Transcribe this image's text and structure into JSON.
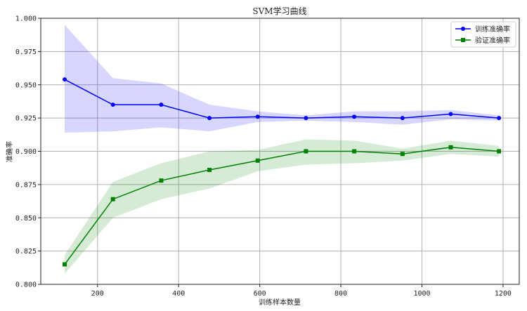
{
  "chart_data": {
    "type": "line",
    "title": "SVM学习曲线",
    "xlabel": "训练样本数量",
    "ylabel": "准确率",
    "xlim": [
      60,
      1240
    ],
    "ylim": [
      0.8,
      1.0
    ],
    "xticks": [
      200,
      400,
      600,
      800,
      1000,
      1200
    ],
    "yticks": [
      0.8,
      0.825,
      0.85,
      0.875,
      0.9,
      0.925,
      0.95,
      0.975,
      1.0
    ],
    "ytick_labels": [
      "0.800",
      "0.825",
      "0.850",
      "0.875",
      "0.900",
      "0.925",
      "0.950",
      "0.975",
      "1.000"
    ],
    "grid": true,
    "legend_position": "top-right",
    "x": [
      119,
      238,
      357,
      476,
      595,
      714,
      833,
      952,
      1071,
      1190
    ],
    "series": [
      {
        "name": "训练准确率",
        "color": "#0000ff",
        "marker": "circle",
        "values": [
          0.954,
          0.935,
          0.935,
          0.925,
          0.926,
          0.925,
          0.926,
          0.925,
          0.928,
          0.925
        ],
        "lower": [
          0.914,
          0.915,
          0.918,
          0.915,
          0.922,
          0.923,
          0.922,
          0.92,
          0.924,
          0.923
        ],
        "upper": [
          0.995,
          0.955,
          0.951,
          0.935,
          0.93,
          0.927,
          0.93,
          0.93,
          0.931,
          0.927
        ],
        "band_color": "#0000ff"
      },
      {
        "name": "验证准确率",
        "color": "#008000",
        "marker": "square",
        "values": [
          0.815,
          0.864,
          0.878,
          0.886,
          0.893,
          0.9,
          0.9,
          0.898,
          0.903,
          0.9
        ],
        "lower": [
          0.808,
          0.85,
          0.864,
          0.872,
          0.885,
          0.89,
          0.891,
          0.893,
          0.898,
          0.896
        ],
        "upper": [
          0.822,
          0.877,
          0.891,
          0.9,
          0.901,
          0.909,
          0.908,
          0.902,
          0.908,
          0.904
        ],
        "band_color": "#008000"
      }
    ]
  }
}
